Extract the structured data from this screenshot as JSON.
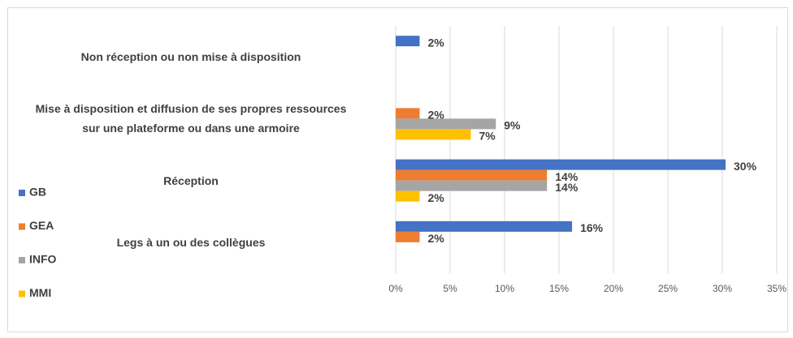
{
  "chart_data": {
    "type": "bar",
    "orientation": "horizontal",
    "categories": [
      "Non réception ou non mise à disposition",
      "Mise à disposition et diffusion de ses propres ressources\nsur une plateforme ou dans une armoire",
      "Réception",
      "Legs à un ou des collègues"
    ],
    "series": [
      {
        "name": "GB",
        "color": "#4472c4",
        "values": [
          2.2,
          null,
          30.3,
          16.2
        ],
        "value_labels": [
          "2%",
          null,
          "30%",
          "16%"
        ]
      },
      {
        "name": "GEA",
        "color": "#ed7d31",
        "values": [
          null,
          2.2,
          13.9,
          2.2
        ],
        "value_labels": [
          null,
          "2%",
          "14%",
          "2%"
        ]
      },
      {
        "name": "INFO",
        "color": "#a5a5a5",
        "values": [
          null,
          9.2,
          13.9,
          null
        ],
        "value_labels": [
          null,
          "9%",
          "14%",
          null
        ]
      },
      {
        "name": "MMI",
        "color": "#ffc000",
        "values": [
          null,
          6.9,
          2.2,
          null
        ],
        "value_labels": [
          null,
          "7%",
          "2%",
          null
        ]
      }
    ],
    "xlim": [
      0,
      35
    ],
    "xticks": [
      {
        "value": 0,
        "label": "0%"
      },
      {
        "value": 5,
        "label": "5%"
      },
      {
        "value": 10,
        "label": "10%"
      },
      {
        "value": 15,
        "label": "15%"
      },
      {
        "value": 20,
        "label": "20%"
      },
      {
        "value": 25,
        "label": "25%"
      },
      {
        "value": 30,
        "label": "30%"
      },
      {
        "value": 35,
        "label": "35%"
      }
    ],
    "grid": true,
    "legend": "left"
  }
}
